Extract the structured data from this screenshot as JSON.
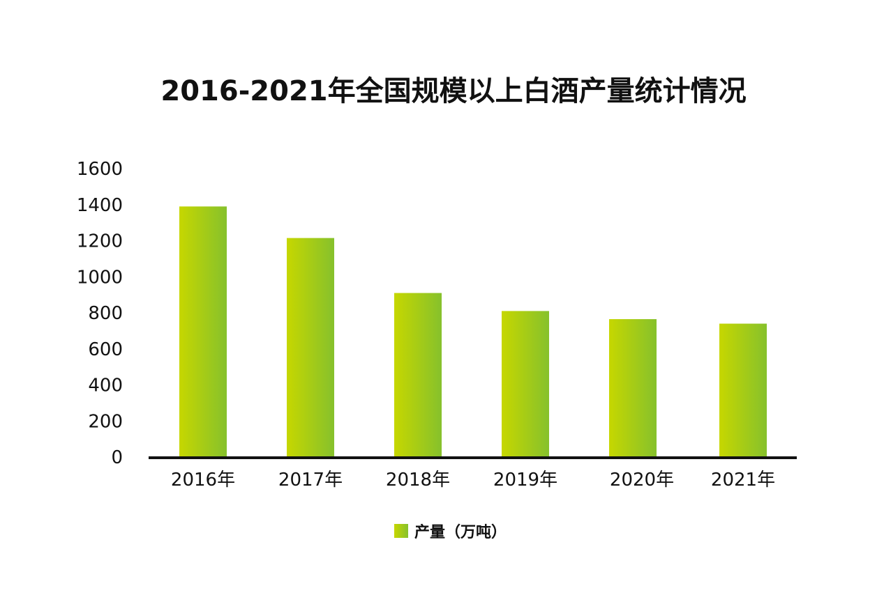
{
  "chart_data": {
    "type": "bar",
    "title": "2016-2021年全国规模以上白酒产量统计情况",
    "categories": [
      "2016年",
      "2017年",
      "2018年",
      "2019年",
      "2020年",
      "2021年"
    ],
    "series": [
      {
        "name": "产量（万吨）",
        "values": [
          1390,
          1215,
          910,
          810,
          765,
          740
        ]
      }
    ],
    "yticks": [
      "0",
      "200",
      "400",
      "600",
      "800",
      "1000",
      "1200",
      "1400",
      "1600"
    ],
    "ylim": [
      0,
      1600
    ],
    "grid": false,
    "legend_position": "bottom-center",
    "bar_gradient": [
      "#c6d700",
      "#86c12c"
    ],
    "axis_color": "#111111"
  }
}
